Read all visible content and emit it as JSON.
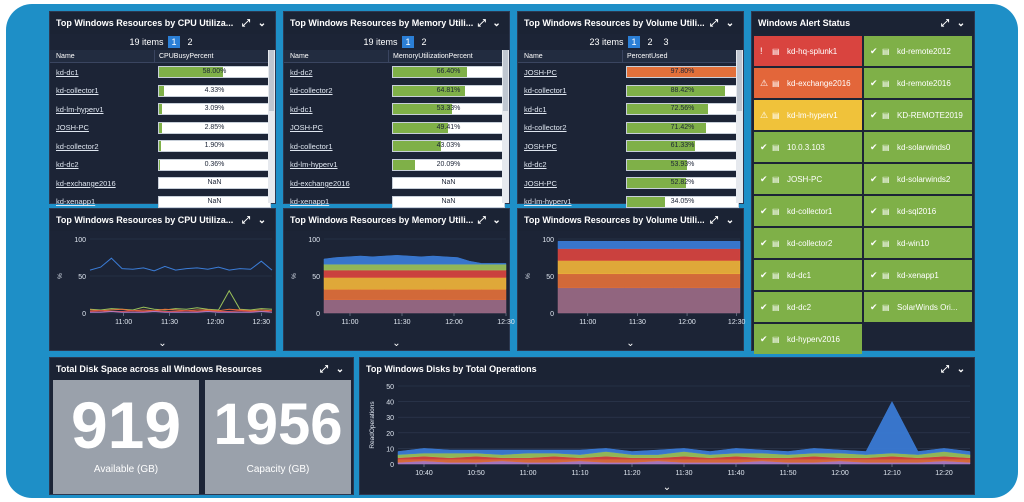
{
  "top_tables": [
    {
      "title": "Top Windows Resources by CPU Utiliza...",
      "items_text": "19 items",
      "pages": [
        "1",
        "2"
      ],
      "col_name": "Name",
      "col_value": "CPUBusyPercent",
      "rows": [
        {
          "name": "kd-dc1",
          "value": "58.00%",
          "level": 0.58,
          "color": "#7fb048"
        },
        {
          "name": "kd-collector1",
          "value": "4.33%",
          "level": 0.0433,
          "color": "#7fb048"
        },
        {
          "name": "kd-lm-hyperv1",
          "value": "3.09%",
          "level": 0.0309,
          "color": "#7fb048"
        },
        {
          "name": "JOSH-PC",
          "value": "2.85%",
          "level": 0.0285,
          "color": "#7fb048"
        },
        {
          "name": "kd-collector2",
          "value": "1.90%",
          "level": 0.019,
          "color": "#7fb048"
        },
        {
          "name": "kd-dc2",
          "value": "0.36%",
          "level": 0.0036,
          "color": "#7fb048"
        },
        {
          "name": "kd-exchange2016",
          "value": "NaN",
          "level": 0,
          "color": "#7fb048"
        },
        {
          "name": "kd-xenapp1",
          "value": "NaN",
          "level": 0,
          "color": "#7fb048"
        }
      ]
    },
    {
      "title": "Top Windows Resources by Memory Utili...",
      "items_text": "19 items",
      "pages": [
        "1",
        "2"
      ],
      "col_name": "Name",
      "col_value": "MemoryUtilizationPercent",
      "rows": [
        {
          "name": "kd-dc2",
          "value": "66.40%",
          "level": 0.664,
          "color": "#7fb048"
        },
        {
          "name": "kd-collector2",
          "value": "64.81%",
          "level": 0.6481,
          "color": "#7fb048"
        },
        {
          "name": "kd-dc1",
          "value": "53.33%",
          "level": 0.5333,
          "color": "#7fb048"
        },
        {
          "name": "JOSH-PC",
          "value": "49.41%",
          "level": 0.4941,
          "color": "#7fb048"
        },
        {
          "name": "kd-collector1",
          "value": "43.03%",
          "level": 0.4303,
          "color": "#7fb048"
        },
        {
          "name": "kd-lm-hyperv1",
          "value": "20.09%",
          "level": 0.2009,
          "color": "#7fb048"
        },
        {
          "name": "kd-exchange2016",
          "value": "NaN",
          "level": 0,
          "color": "#7fb048"
        },
        {
          "name": "kd-xenapp1",
          "value": "NaN",
          "level": 0,
          "color": "#7fb048"
        }
      ]
    },
    {
      "title": "Top Windows Resources by Volume Utili...",
      "items_text": "23 items",
      "pages": [
        "1",
        "2",
        "3"
      ],
      "col_name": "Name",
      "col_value": "PercentUsed",
      "rows": [
        {
          "name": "JOSH-PC",
          "value": "97.80%",
          "level": 0.978,
          "color": "#e2703a"
        },
        {
          "name": "kd-collector1",
          "value": "88.42%",
          "level": 0.8842,
          "color": "#7fb048"
        },
        {
          "name": "kd-dc1",
          "value": "72.56%",
          "level": 0.7256,
          "color": "#7fb048"
        },
        {
          "name": "kd-collector2",
          "value": "71.42%",
          "level": 0.7142,
          "color": "#7fb048"
        },
        {
          "name": "JOSH-PC",
          "value": "61.33%",
          "level": 0.6133,
          "color": "#7fb048"
        },
        {
          "name": "kd-dc2",
          "value": "53.93%",
          "level": 0.5393,
          "color": "#7fb048"
        },
        {
          "name": "JOSH-PC",
          "value": "52.82%",
          "level": 0.5282,
          "color": "#7fb048"
        },
        {
          "name": "kd-lm-hyperv1",
          "value": "34.05%",
          "level": 0.3405,
          "color": "#7fb048"
        }
      ]
    }
  ],
  "alert_panel": {
    "title": "Windows Alert Status",
    "cells": [
      {
        "name": "kd-hq-splunk1",
        "status": "critical",
        "color": "#d9443f",
        "symbol": "!"
      },
      {
        "name": "kd-remote2012",
        "status": "ok",
        "color": "#7fb048",
        "symbol": "✔"
      },
      {
        "name": "kd-exchange2016",
        "status": "error",
        "color": "#e3663a",
        "symbol": "⚠"
      },
      {
        "name": "kd-remote2016",
        "status": "ok",
        "color": "#7fb048",
        "symbol": "✔"
      },
      {
        "name": "kd-lm-hyperv1",
        "status": "warning",
        "color": "#f0c23a",
        "symbol": "⚠"
      },
      {
        "name": "KD-REMOTE2019",
        "status": "ok",
        "color": "#7fb048",
        "symbol": "✔"
      },
      {
        "name": "10.0.3.103",
        "status": "ok",
        "color": "#7fb048",
        "symbol": "✔"
      },
      {
        "name": "kd-solarwinds0",
        "status": "ok",
        "color": "#7fb048",
        "symbol": "✔"
      },
      {
        "name": "JOSH-PC",
        "status": "ok",
        "color": "#7fb048",
        "symbol": "✔"
      },
      {
        "name": "kd-solarwinds2",
        "status": "ok",
        "color": "#7fb048",
        "symbol": "✔"
      },
      {
        "name": "kd-collector1",
        "status": "ok",
        "color": "#7fb048",
        "symbol": "✔"
      },
      {
        "name": "kd-sql2016",
        "status": "ok",
        "color": "#7fb048",
        "symbol": "✔"
      },
      {
        "name": "kd-collector2",
        "status": "ok",
        "color": "#7fb048",
        "symbol": "✔"
      },
      {
        "name": "kd-win10",
        "status": "ok",
        "color": "#7fb048",
        "symbol": "✔"
      },
      {
        "name": "kd-dc1",
        "status": "ok",
        "color": "#7fb048",
        "symbol": "✔"
      },
      {
        "name": "kd-xenapp1",
        "status": "ok",
        "color": "#7fb048",
        "symbol": "✔"
      },
      {
        "name": "kd-dc2",
        "status": "ok",
        "color": "#7fb048",
        "symbol": "✔"
      },
      {
        "name": "SolarWinds Ori...",
        "status": "ok",
        "color": "#7fb048",
        "symbol": "✔"
      },
      {
        "name": "kd-hyperv2016",
        "status": "ok",
        "color": "#7fb048",
        "symbol": "✔"
      }
    ]
  },
  "disk_space": {
    "title": "Total Disk Space across all Windows Resources",
    "available_value": "919",
    "available_label": "Available (GB)",
    "capacity_value": "1956",
    "capacity_label": "Capacity (GB)"
  },
  "chart_titles": {
    "cpu": "Top Windows Resources by CPU Utiliza...",
    "memory": "Top Windows Resources by Memory Utili...",
    "volume": "Top Windows Resources by Volume Utili...",
    "disk_ops": "Top Windows Disks by Total Operations"
  },
  "chart_data": [
    {
      "type": "line",
      "title": "Top Windows Resources by CPU Utiliza...",
      "ylabel": "%",
      "ylim": [
        0,
        100
      ],
      "yticks": [
        100,
        50,
        0
      ],
      "x": [
        "10:38",
        "10:45",
        "10:52",
        "10:59",
        "11:06",
        "11:13",
        "11:20",
        "11:27",
        "11:34",
        "11:41",
        "11:48",
        "11:55",
        "12:02",
        "12:09",
        "12:16",
        "12:23",
        "12:30",
        "12:37"
      ],
      "xticks": [
        "11:00",
        "11:30",
        "12:00",
        "12:30"
      ],
      "series": [
        {
          "color": "#3b7dd8",
          "values": [
            58,
            62,
            74,
            60,
            59,
            61,
            57,
            63,
            58,
            60,
            61,
            59,
            62,
            58,
            60,
            59,
            70,
            58
          ]
        },
        {
          "color": "#9bc25a",
          "values": [
            5,
            4,
            6,
            5,
            4,
            8,
            5,
            4,
            6,
            5,
            7,
            5,
            4,
            30,
            5,
            4,
            6,
            5
          ]
        },
        {
          "color": "#e2703a",
          "values": [
            4,
            3,
            4,
            5,
            3,
            4,
            3,
            5,
            4,
            3,
            4,
            4,
            3,
            5,
            4,
            3,
            4,
            3
          ]
        },
        {
          "color": "#d9443f",
          "values": [
            2,
            3,
            2,
            2,
            3,
            2,
            3,
            2,
            2,
            3,
            2,
            3,
            2,
            2,
            3,
            2,
            2,
            3
          ]
        },
        {
          "color": "#b07cc6",
          "values": [
            1,
            1,
            2,
            1,
            1,
            1,
            2,
            1,
            1,
            1,
            1,
            2,
            1,
            1,
            1,
            1,
            2,
            1
          ]
        }
      ]
    },
    {
      "type": "area",
      "title": "Top Windows Resources by Memory Utili...",
      "ylabel": "%",
      "ylim": [
        0,
        100
      ],
      "yticks": [
        100,
        50,
        0
      ],
      "x": [
        "10:45",
        "10:52",
        "10:59",
        "11:06",
        "11:13",
        "11:20",
        "11:27",
        "11:34",
        "11:41",
        "11:48",
        "11:55",
        "12:02",
        "12:09",
        "12:16",
        "12:23",
        "12:30"
      ],
      "xticks": [
        "11:00",
        "11:30",
        "12:00",
        "12:30"
      ],
      "series": [
        {
          "color": "#9b6b86",
          "values": [
            18,
            18,
            18,
            18,
            18,
            18,
            18,
            18,
            18,
            18,
            18,
            18,
            18,
            18,
            18,
            18
          ]
        },
        {
          "color": "#e2703a",
          "values": [
            14,
            14,
            14,
            14,
            14,
            14,
            14,
            14,
            14,
            14,
            14,
            14,
            14,
            14,
            14,
            14
          ]
        },
        {
          "color": "#f0b43a",
          "values": [
            16,
            16,
            16,
            16,
            16,
            16,
            16,
            16,
            16,
            16,
            16,
            16,
            16,
            16,
            16,
            16
          ]
        },
        {
          "color": "#d9443f",
          "values": [
            10,
            10,
            10,
            10,
            10,
            10,
            10,
            10,
            10,
            10,
            10,
            10,
            10,
            10,
            10,
            10
          ]
        },
        {
          "color": "#9bc25a",
          "values": [
            8,
            8,
            8,
            8,
            8,
            8,
            8,
            8,
            8,
            8,
            8,
            8,
            8,
            8,
            8,
            8
          ]
        },
        {
          "color": "#3b7dd8",
          "values": [
            7,
            9,
            10,
            11,
            10,
            11,
            12,
            11,
            10,
            11,
            10,
            9,
            4,
            1,
            1,
            1
          ]
        }
      ]
    },
    {
      "type": "area",
      "title": "Top Windows Resources by Volume Utili...",
      "ylabel": "%",
      "ylim": [
        0,
        100
      ],
      "yticks": [
        100,
        50,
        0
      ],
      "x": [
        "10:42",
        "10:52",
        "11:02",
        "11:12",
        "11:22",
        "11:32",
        "11:42",
        "11:52",
        "12:02",
        "12:12",
        "12:22",
        "12:32"
      ],
      "xticks": [
        "11:00",
        "11:30",
        "12:00",
        "12:30"
      ],
      "series": [
        {
          "color": "#9b6b86",
          "values": [
            34,
            34,
            34,
            34,
            34,
            34,
            34,
            34,
            34,
            34,
            34,
            34
          ]
        },
        {
          "color": "#e2703a",
          "values": [
            19,
            19,
            19,
            19,
            19,
            19,
            19,
            19,
            19,
            19,
            19,
            19
          ]
        },
        {
          "color": "#f0b43a",
          "values": [
            18,
            18,
            18,
            18,
            18,
            18,
            18,
            18,
            18,
            18,
            18,
            18
          ]
        },
        {
          "color": "#d9443f",
          "values": [
            16,
            16,
            16,
            16,
            16,
            16,
            16,
            16,
            16,
            16,
            16,
            16
          ]
        },
        {
          "color": "#3b7dd8",
          "values": [
            10,
            10,
            10,
            10,
            10,
            10,
            10,
            10,
            10,
            10,
            10,
            10
          ]
        }
      ]
    },
    {
      "type": "area",
      "title": "Top Windows Disks by Total Operations",
      "ylabel": "ReadOperations",
      "ylim": [
        0,
        50
      ],
      "yticks": [
        50,
        40,
        30,
        20,
        10,
        0
      ],
      "x": [
        "10:35",
        "10:40",
        "10:45",
        "10:50",
        "10:55",
        "11:00",
        "11:05",
        "11:10",
        "11:15",
        "11:20",
        "11:25",
        "11:30",
        "11:35",
        "11:40",
        "11:45",
        "11:50",
        "11:55",
        "12:00",
        "12:05",
        "12:10",
        "12:15",
        "12:20",
        "12:25"
      ],
      "xticks": [
        "10:40",
        "10:50",
        "11:00",
        "11:10",
        "11:20",
        "11:30",
        "11:40",
        "11:50",
        "12:00",
        "12:10",
        "12:20"
      ],
      "series": [
        {
          "color": "#b07cc6",
          "values": [
            1,
            2,
            1,
            1,
            2,
            1,
            1,
            2,
            1,
            1,
            2,
            1,
            1,
            1,
            2,
            1,
            1,
            2,
            1,
            1,
            1,
            2,
            1
          ]
        },
        {
          "color": "#e2703a",
          "values": [
            2,
            1,
            2,
            2,
            1,
            2,
            2,
            1,
            2,
            2,
            1,
            2,
            2,
            2,
            1,
            2,
            2,
            1,
            2,
            2,
            2,
            1,
            2
          ]
        },
        {
          "color": "#d9443f",
          "values": [
            1,
            2,
            1,
            2,
            1,
            1,
            2,
            1,
            2,
            1,
            1,
            2,
            1,
            2,
            1,
            1,
            2,
            1,
            1,
            2,
            1,
            2,
            1
          ]
        },
        {
          "color": "#9bc25a",
          "values": [
            2,
            2,
            3,
            2,
            2,
            3,
            2,
            2,
            3,
            2,
            2,
            3,
            2,
            2,
            3,
            2,
            2,
            3,
            2,
            2,
            2,
            3,
            2
          ]
        },
        {
          "color": "#3b7dd8",
          "values": [
            2,
            3,
            2,
            2,
            3,
            2,
            2,
            3,
            2,
            2,
            3,
            2,
            2,
            3,
            2,
            2,
            3,
            2,
            2,
            33,
            2,
            2,
            2
          ]
        }
      ]
    }
  ]
}
